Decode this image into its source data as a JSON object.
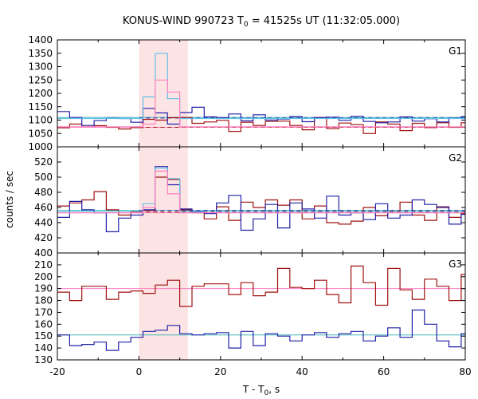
{
  "chart_data": {
    "type": "line",
    "title": "KONUS-WIND 990723 T",
    "title_sub": "0",
    "title_rest": " = 41525s UT (11:32:05.000)",
    "xlabel": "T - T",
    "xlabel_sub": "0",
    "xlabel_rest": ", s",
    "ylabel": "counts / sec",
    "xlim": [
      -20,
      80
    ],
    "x_ticks": [
      "-20",
      "0",
      "20",
      "40",
      "60",
      "80"
    ],
    "x_tick_values": [
      -20,
      0,
      20,
      40,
      60,
      80
    ],
    "highlight": {
      "x0": 0,
      "x1": 12,
      "color": "#fde4e4"
    },
    "colors": {
      "red": "#a01010",
      "blue": "#2020a8",
      "cyan": "#60c0e8",
      "pink": "#ff80c0",
      "teal": "#40b8b8"
    },
    "panels": [
      {
        "label": "G1",
        "ylim": [
          1000,
          1400
        ],
        "yticks": [
          1000,
          1050,
          1100,
          1150,
          1200,
          1250,
          1300,
          1350,
          1400
        ],
        "ytick_labels": [
          "1000",
          "1050",
          "1100",
          "1150",
          "1200",
          "1250",
          "1300",
          "1350",
          "1400"
        ],
        "series": [
          {
            "color": "red",
            "x0": -20,
            "step": 3,
            "values": [
              1071,
              1085,
              1075,
              1079,
              1073,
              1067,
              1072,
              1103,
              1100,
              1109,
              1110,
              1088,
              1093,
              1099,
              1058,
              1092,
              1080,
              1095,
              1096,
              1080,
              1064,
              1110,
              1068,
              1089,
              1083,
              1050,
              1093,
              1085,
              1061,
              1088,
              1072,
              1090,
              1073,
              1090
            ]
          },
          {
            "color": "blue",
            "x0": -20,
            "step": 3,
            "values": [
              1132,
              1110,
              1080,
              1098,
              1107,
              1106,
              1092,
              1144,
              1127,
              1085,
              1128,
              1148,
              1112,
              1109,
              1123,
              1097,
              1120,
              1100,
              1104,
              1113,
              1094,
              1109,
              1111,
              1099,
              1114,
              1095,
              1090,
              1093,
              1112,
              1096,
              1105,
              1093,
              1107,
              1113
            ]
          },
          {
            "color": "cyan",
            "x0": -20,
            "step": 3,
            "values": [
              1106,
              1106,
              1106,
              1106,
              1106,
              1106,
              1106,
              1187,
              1350,
              1180,
              1106,
              1106,
              1106,
              1106,
              1106,
              1106,
              1106,
              1106,
              1106,
              1106,
              1106,
              1106,
              1106,
              1106,
              1106,
              1106,
              1106,
              1106,
              1106,
              1106,
              1106,
              1106,
              1106,
              1106
            ]
          },
          {
            "color": "pink",
            "x0": -20,
            "step": 3,
            "values": [
              1075,
              1075,
              1075,
              1075,
              1075,
              1075,
              1075,
              1085,
              1250,
              1205,
              1075,
              1075,
              1075,
              1075,
              1075,
              1075,
              1075,
              1075,
              1075,
              1075,
              1075,
              1075,
              1075,
              1075,
              1075,
              1075,
              1075,
              1075,
              1075,
              1075,
              1075,
              1075,
              1075,
              1075
            ]
          }
        ],
        "hlines": [
          {
            "color": "teal",
            "dash": false,
            "x_from": -20,
            "x_to": 80,
            "y": 1110
          },
          {
            "color": "pink",
            "dash": false,
            "x_from": -20,
            "x_to": 80,
            "y": 1073
          },
          {
            "color": "red",
            "dash": true,
            "x_from": 0,
            "x_to": 80,
            "y": 1073
          },
          {
            "color": "blue",
            "dash": true,
            "x_from": 0,
            "x_to": 80,
            "y": 1108
          }
        ]
      },
      {
        "label": "G2",
        "ylim": [
          400,
          540
        ],
        "yticks": [
          400,
          420,
          440,
          460,
          480,
          500,
          520
        ],
        "ytick_labels": [
          "400",
          "420",
          "440",
          "460",
          "480",
          "500",
          "520"
        ],
        "series": [
          {
            "color": "red",
            "x0": -20,
            "step": 3,
            "values": [
              462,
              466,
              470,
              481,
              457,
              450,
              454,
              456,
              500,
              497,
              457,
              453,
              445,
              461,
              443,
              467,
              460,
              470,
              463,
              470,
              445,
              462,
              440,
              438,
              442,
              460,
              449,
              455,
              467,
              450,
              443,
              461,
              447,
              452
            ]
          },
          {
            "color": "blue",
            "x0": -20,
            "step": 3,
            "values": [
              447,
              468,
              457,
              453,
              428,
              446,
              450,
              457,
              514,
              490,
              458,
              454,
              452,
              466,
              476,
              430,
              445,
              464,
              433,
              466,
              458,
              446,
              475,
              450,
              453,
              444,
              465,
              446,
              450,
              470,
              464,
              460,
              438,
              451
            ]
          },
          {
            "color": "cyan",
            "x0": -20,
            "step": 3,
            "values": [
              455,
              455,
              455,
              455,
              455,
              455,
              455,
              465,
              512,
              498,
              455,
              455,
              455,
              455,
              455,
              455,
              455,
              455,
              455,
              455,
              455,
              455,
              455,
              455,
              455,
              455,
              455,
              455,
              455,
              455,
              455,
              455,
              455,
              455
            ]
          },
          {
            "color": "pink",
            "x0": -20,
            "step": 3,
            "values": [
              453,
              453,
              453,
              453,
              453,
              453,
              453,
              460,
              508,
              478,
              453,
              453,
              453,
              453,
              453,
              453,
              453,
              453,
              453,
              453,
              453,
              453,
              453,
              453,
              453,
              453,
              453,
              453,
              453,
              453,
              453,
              453,
              453,
              453
            ]
          }
        ],
        "hlines": [
          {
            "color": "teal",
            "dash": false,
            "x_from": -20,
            "x_to": 80,
            "y": 456
          },
          {
            "color": "pink",
            "dash": false,
            "x_from": -20,
            "x_to": 80,
            "y": 453
          },
          {
            "color": "red",
            "dash": true,
            "x_from": 0,
            "x_to": 80,
            "y": 454
          },
          {
            "color": "blue",
            "dash": true,
            "x_from": 0,
            "x_to": 80,
            "y": 456
          }
        ]
      },
      {
        "label": "G3",
        "ylim": [
          130,
          220
        ],
        "yticks": [
          130,
          140,
          150,
          160,
          170,
          180,
          190,
          200,
          210
        ],
        "ytick_labels": [
          "130",
          "140",
          "150",
          "160",
          "170",
          "180",
          "190",
          "200",
          "210"
        ],
        "series": [
          {
            "color": "red",
            "x0": -20,
            "step": 3,
            "values": [
              187,
              180,
              192,
              192,
              181,
              187,
              188,
              186,
              193,
              197,
              175,
              192,
              194,
              194,
              185,
              195,
              184,
              187,
              207,
              191,
              190,
              197,
              185,
              178,
              209,
              195,
              176,
              207,
              189,
              181,
              198,
              192,
              180,
              202
            ]
          },
          {
            "color": "blue",
            "x0": -20,
            "step": 3,
            "values": [
              151,
              142,
              143,
              145,
              138,
              145,
              149,
              154,
              155,
              159,
              152,
              151,
              152,
              153,
              140,
              154,
              142,
              152,
              150,
              146,
              151,
              153,
              149,
              152,
              154,
              146,
              150,
              157,
              149,
              172,
              160,
              146,
              141,
              152
            ]
          }
        ],
        "hlines": [
          {
            "color": "pink",
            "dash": false,
            "x_from": -20,
            "x_to": 80,
            "y": 190
          },
          {
            "color": "teal",
            "dash": false,
            "x_from": -20,
            "x_to": 80,
            "y": 151
          }
        ]
      }
    ]
  }
}
